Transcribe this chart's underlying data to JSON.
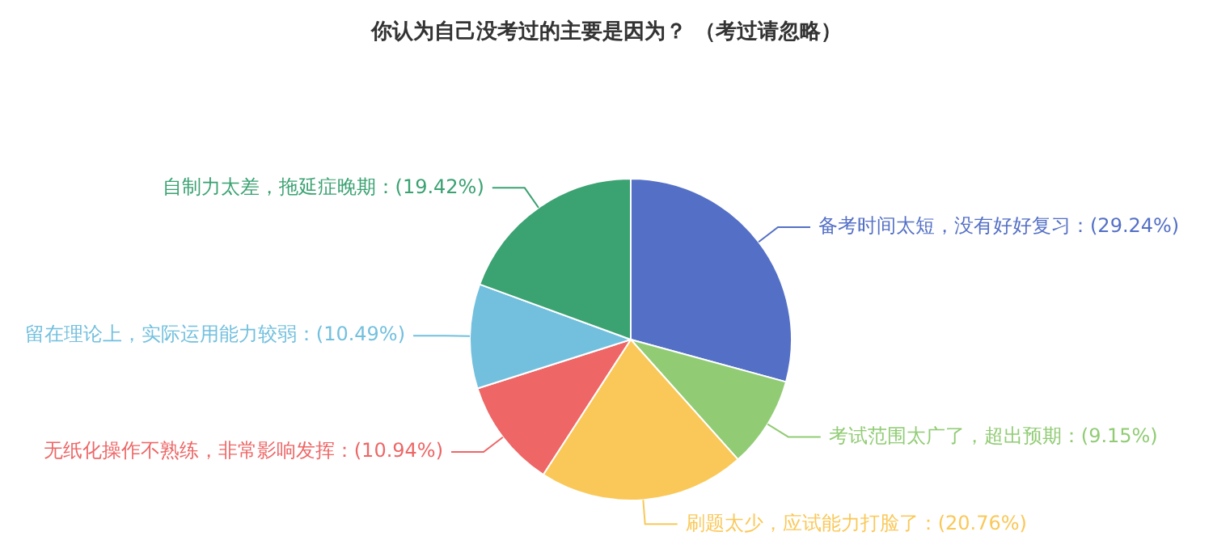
{
  "chart_data": {
    "type": "pie",
    "title": "你认为自己没考过的主要是因为？ （考过请忽略）",
    "categories": [
      "备考时间太短，没有好好复习",
      "考试范围太广了，超出预期",
      "刷题太少，应试能力打脸了",
      "无纸化操作不熟练，非常影响发挥",
      "留在理论上，实际运用能力较弱",
      "自制力太差，拖延症晚期"
    ],
    "values": [
      29.24,
      9.15,
      20.76,
      10.94,
      10.49,
      19.42
    ],
    "value_labels": [
      "(29.24%)",
      "(9.15%)",
      "(20.76%)",
      "(10.94%)",
      "(10.49%)",
      "(19.42%)"
    ],
    "colors": [
      "#5470c6",
      "#91cc75",
      "#fac858",
      "#ee6666",
      "#73c0de",
      "#3ba272"
    ],
    "legend": false
  }
}
